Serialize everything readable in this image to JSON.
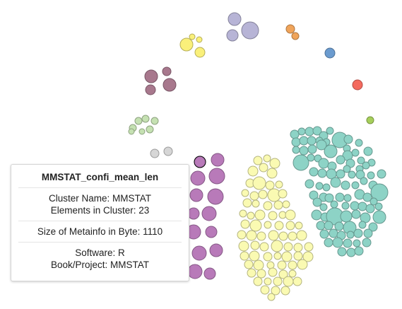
{
  "tooltip": {
    "title": "MMSTAT_confi_mean_len",
    "cluster_label": "Cluster Name: ",
    "cluster_value": "MMSTAT",
    "elements_label": "Elements in Cluster: ",
    "elements_value": "23",
    "metainfo_label": "Size of Metainfo in Byte: ",
    "metainfo_value": "1110",
    "software_label": "Software: ",
    "software_value": "R",
    "project_label": "Book/Project: ",
    "project_value": "MMSTAT"
  },
  "clusters": [
    {
      "name": "lavender",
      "color": "#b7b4d6"
    },
    {
      "name": "orange",
      "color": "#f0a45a"
    },
    {
      "name": "yellow-top",
      "color": "#faf07a"
    },
    {
      "name": "blue",
      "color": "#6b9bcf"
    },
    {
      "name": "mauve",
      "color": "#a8788d"
    },
    {
      "name": "red",
      "color": "#f46a5e"
    },
    {
      "name": "light-green",
      "color": "#c5e1b2"
    },
    {
      "name": "lime",
      "color": "#a6cf5a"
    },
    {
      "name": "grey",
      "color": "#d6d6d6"
    },
    {
      "name": "purple",
      "color": "#b87ab9"
    },
    {
      "name": "pale-yellow",
      "color": "#fafab2"
    },
    {
      "name": "teal",
      "color": "#8dd3c6"
    }
  ],
  "highlight_color": "#000000"
}
